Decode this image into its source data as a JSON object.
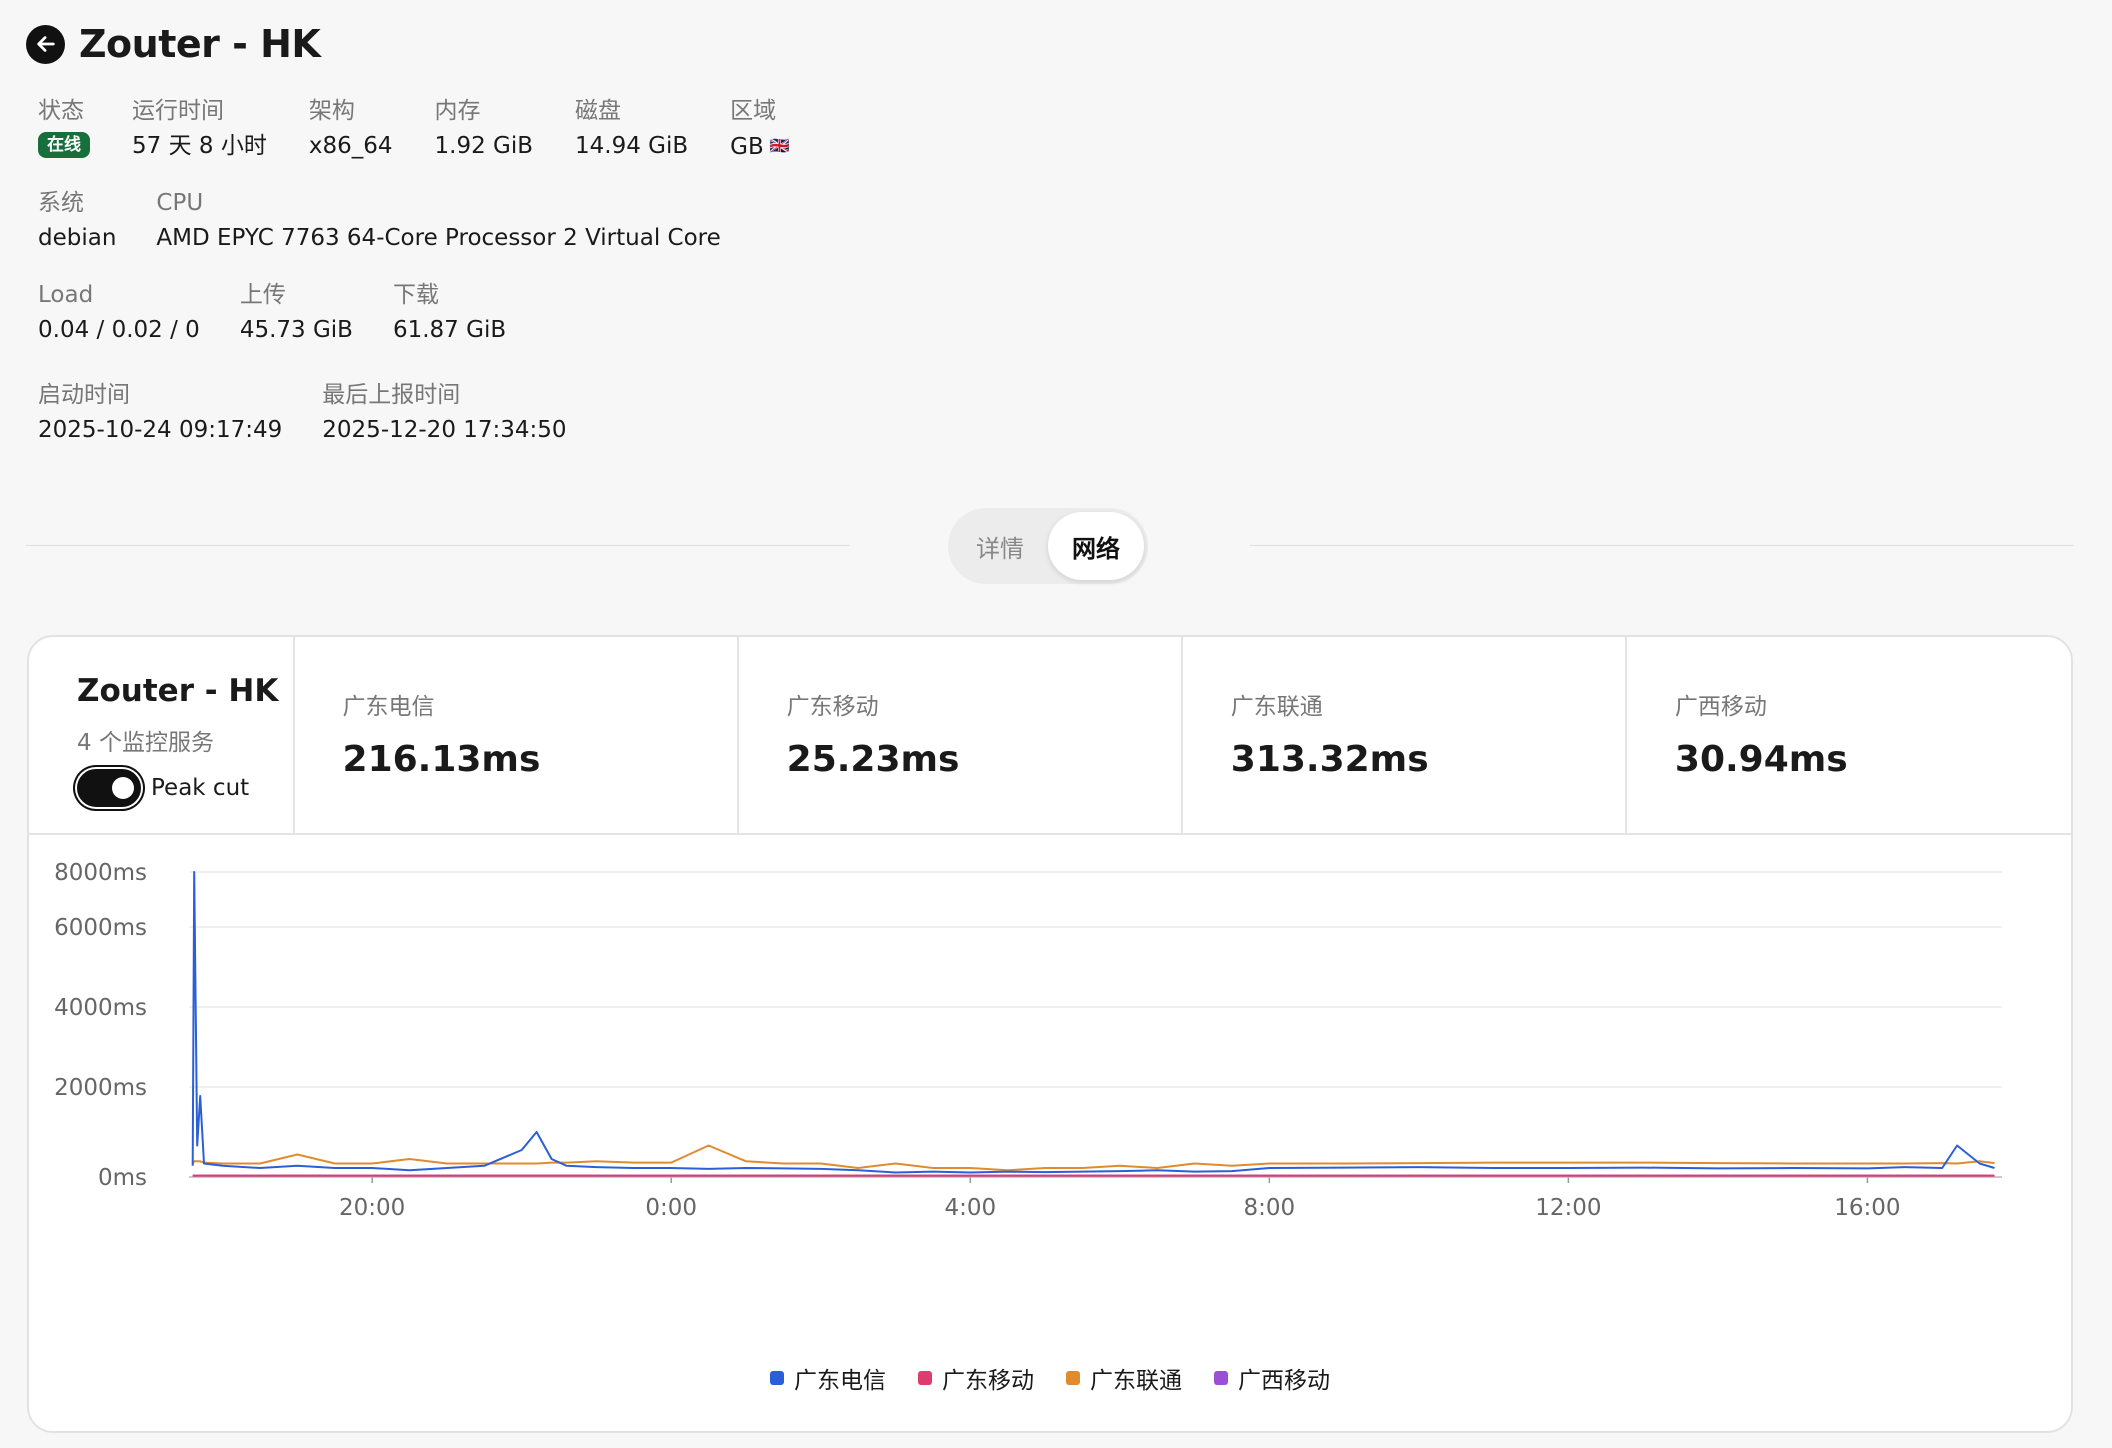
{
  "header": {
    "title": "Zouter - HK"
  },
  "info": {
    "row1": [
      {
        "label": "状态",
        "badge": "在线"
      },
      {
        "label": "运行时间",
        "value": "57 天 8 小时"
      },
      {
        "label": "架构",
        "value": "x86_64"
      },
      {
        "label": "内存",
        "value": "1.92 GiB"
      },
      {
        "label": "磁盘",
        "value": "14.94 GiB"
      },
      {
        "label": "区域",
        "value": "GB",
        "flag": "🇬🇧"
      }
    ],
    "row2": [
      {
        "label": "系统",
        "value": "debian"
      },
      {
        "label": "CPU",
        "value": "AMD EPYC 7763 64-Core Processor 2 Virtual Core"
      }
    ],
    "row3": [
      {
        "label": "Load",
        "value": "0.04 / 0.02 / 0"
      },
      {
        "label": "上传",
        "value": "45.73 GiB"
      },
      {
        "label": "下载",
        "value": "61.87 GiB"
      }
    ],
    "row4": [
      {
        "label": "启动时间",
        "value": "2025-10-24 09:17:49"
      },
      {
        "label": "最后上报时间",
        "value": "2025-12-20 17:34:50"
      }
    ]
  },
  "tabs": [
    {
      "label": "详情"
    },
    {
      "label": "网络"
    }
  ],
  "card": {
    "title": "Zouter - HK",
    "subtitle": "4 个监控服务",
    "toggle_label": "Peak cut",
    "stats": [
      {
        "label": "广东电信",
        "value": "216.13ms"
      },
      {
        "label": "广东移动",
        "value": "25.23ms"
      },
      {
        "label": "广东联通",
        "value": "313.32ms"
      },
      {
        "label": "广西移动",
        "value": "30.94ms"
      }
    ]
  },
  "chart_data": {
    "type": "line",
    "ylim": [
      0,
      8000
    ],
    "yticks": [
      "0ms",
      "2000ms",
      "4000ms",
      "6000ms",
      "8000ms"
    ],
    "ytick_values": [
      0,
      2000,
      4000,
      6000,
      8000
    ],
    "xticks": [
      "20:00",
      "0:00",
      "4:00",
      "8:00",
      "12:00",
      "16:00"
    ],
    "xtick_hours": [
      20,
      24,
      28,
      32,
      36,
      40
    ],
    "x_hours": [
      17.6,
      17.62,
      17.66,
      17.7,
      17.75,
      18,
      18.5,
      19,
      19.5,
      20,
      20.5,
      21,
      21.5,
      22,
      22.2,
      22.4,
      22.6,
      23,
      23.5,
      24,
      24.5,
      25,
      25.5,
      26,
      26.5,
      27,
      27.5,
      28,
      28.5,
      29,
      29.5,
      30,
      30.5,
      31,
      31.5,
      32,
      33,
      34,
      35,
      36,
      37,
      38,
      39,
      40,
      40.5,
      41,
      41.2,
      41.5,
      41.7
    ],
    "series": [
      {
        "name": "广东电信",
        "color": "#2b5fd9",
        "values": [
          250,
          8000,
          700,
          1800,
          300,
          250,
          200,
          250,
          200,
          200,
          150,
          200,
          250,
          600,
          1000,
          400,
          250,
          220,
          200,
          200,
          180,
          200,
          190,
          180,
          150,
          100,
          120,
          100,
          120,
          110,
          120,
          130,
          150,
          120,
          130,
          200,
          210,
          220,
          200,
          200,
          210,
          190,
          200,
          190,
          220,
          200,
          700,
          300,
          200
        ]
      },
      {
        "name": "广东移动",
        "color": "#dc3c6e",
        "values": [
          30,
          30,
          30,
          30,
          30,
          30,
          30,
          30,
          30,
          30,
          30,
          30,
          30,
          30,
          30,
          30,
          30,
          30,
          30,
          30,
          30,
          30,
          30,
          30,
          30,
          30,
          30,
          30,
          30,
          30,
          30,
          30,
          30,
          30,
          30,
          30,
          30,
          30,
          30,
          30,
          30,
          30,
          30,
          30,
          30,
          30,
          30,
          30,
          30
        ]
      },
      {
        "name": "广东联通",
        "color": "#e08b2e",
        "values": [
          300,
          350,
          350,
          350,
          320,
          300,
          300,
          500,
          300,
          300,
          400,
          300,
          300,
          300,
          300,
          320,
          320,
          350,
          320,
          320,
          700,
          350,
          300,
          300,
          200,
          300,
          200,
          200,
          150,
          200,
          200,
          250,
          200,
          300,
          250,
          300,
          300,
          310,
          320,
          320,
          320,
          310,
          300,
          300,
          300,
          310,
          300,
          350,
          310
        ]
      },
      {
        "name": "广西移动",
        "color": "#9b4ed6",
        "values": [
          30,
          30,
          30,
          30,
          30,
          30,
          30,
          30,
          30,
          30,
          30,
          30,
          30,
          30,
          30,
          30,
          30,
          30,
          30,
          30,
          30,
          30,
          30,
          30,
          30,
          30,
          30,
          30,
          30,
          30,
          30,
          30,
          30,
          30,
          30,
          30,
          30,
          30,
          30,
          30,
          30,
          30,
          30,
          30,
          30,
          30,
          30,
          30,
          30
        ]
      }
    ]
  }
}
